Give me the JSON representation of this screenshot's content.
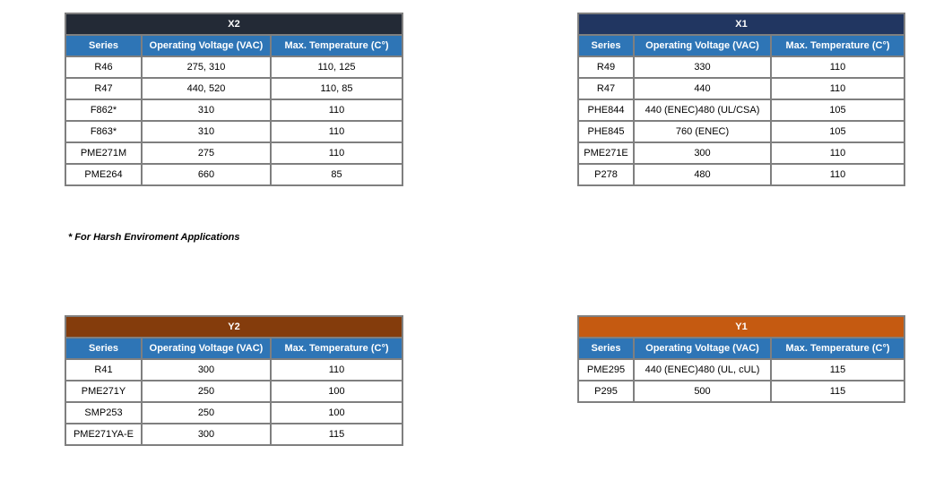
{
  "columns": [
    "Series",
    "Operating Voltage (VAC)",
    "Max. Temperature (C°)"
  ],
  "tables": {
    "x2": {
      "title": "X2",
      "color": "#232a36",
      "rows": [
        [
          "R46",
          "275, 310",
          "110, 125"
        ],
        [
          "R47",
          "440, 520",
          "110, 85"
        ],
        [
          "F862*",
          "310",
          "110"
        ],
        [
          "F863*",
          "310",
          "110"
        ],
        [
          "PME271M",
          "275",
          "110"
        ],
        [
          "PME264",
          "660",
          "85"
        ]
      ]
    },
    "x1": {
      "title": "X1",
      "color": "#213661",
      "rows": [
        [
          "R49",
          "330",
          "110"
        ],
        [
          "R47",
          "440",
          "110"
        ],
        [
          "PHE844",
          "440 (ENEC)480 (UL/CSA)",
          "105"
        ],
        [
          "PHE845",
          "760 (ENEC)",
          "105"
        ],
        [
          "PME271E",
          "300",
          "110"
        ],
        [
          "P278",
          "480",
          "110"
        ]
      ]
    },
    "y2": {
      "title": "Y2",
      "color": "#843c0c",
      "rows": [
        [
          "R41",
          "300",
          "110"
        ],
        [
          "PME271Y",
          "250",
          "100"
        ],
        [
          "SMP253",
          "250",
          "100"
        ],
        [
          "PME271YA-E",
          "300",
          "115"
        ]
      ]
    },
    "y1": {
      "title": "Y1",
      "color": "#c55a11",
      "rows": [
        [
          "PME295",
          "440 (ENEC)480 (UL, cUL)",
          "115"
        ],
        [
          "P295",
          "500",
          "115"
        ]
      ]
    }
  },
  "footnote": "* For Harsh Enviroment Applications",
  "header_color": "#2e75b6"
}
